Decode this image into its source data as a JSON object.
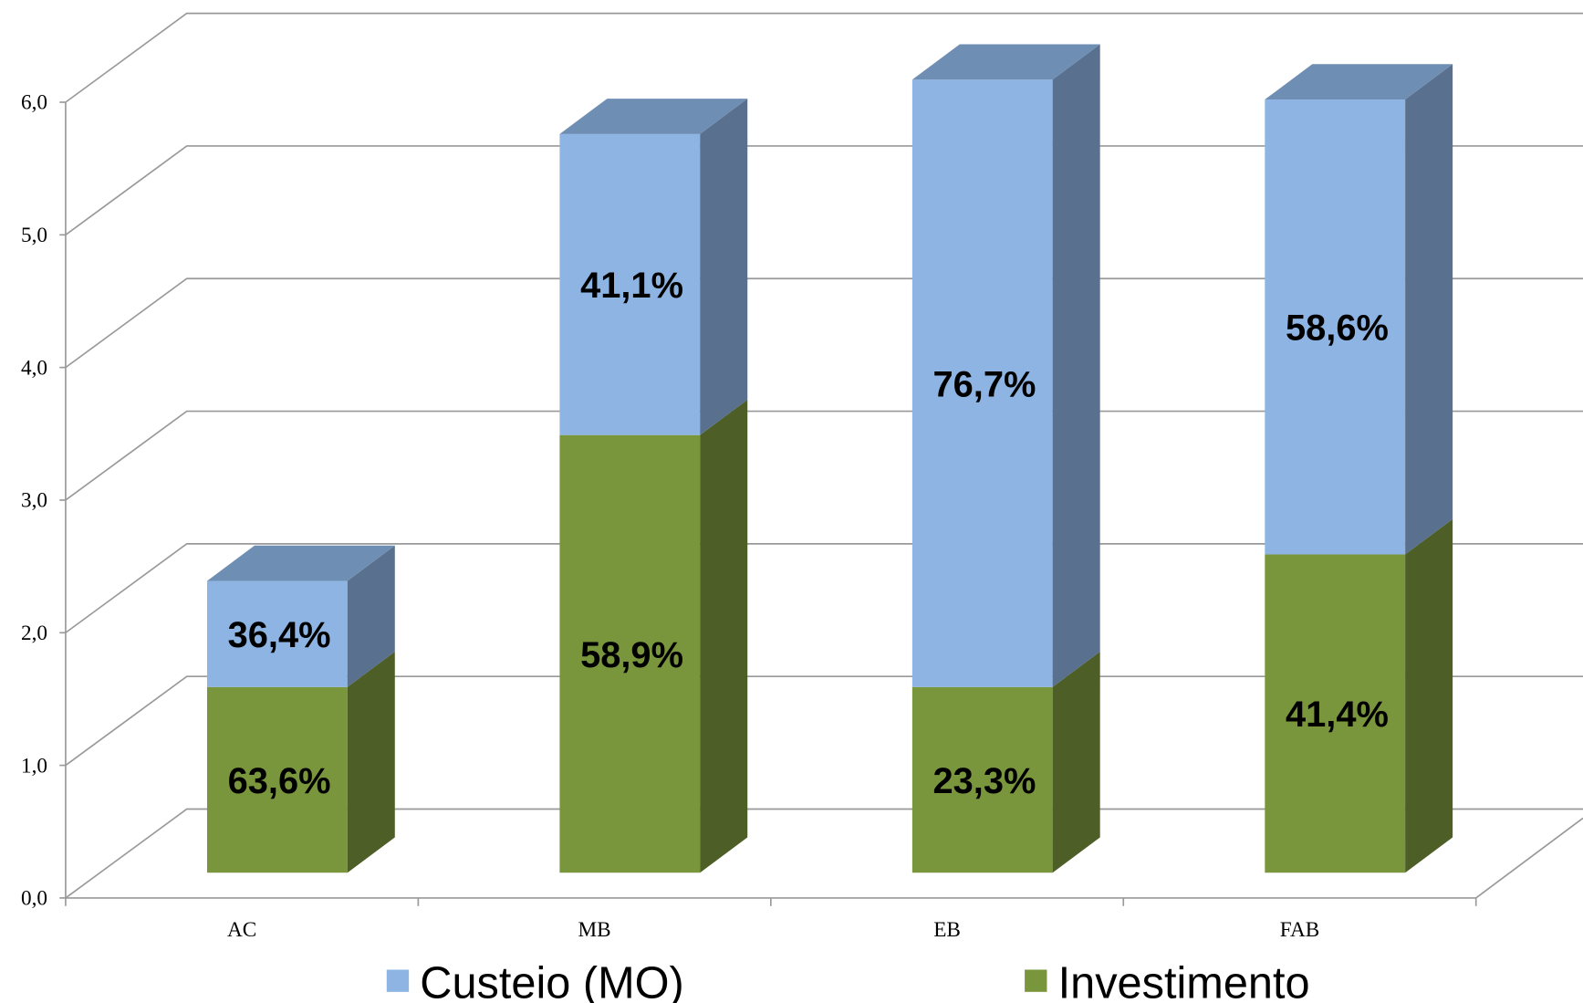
{
  "chart_data": {
    "type": "bar3d_stacked",
    "categories": [
      "AC",
      "MB",
      "EB",
      "FAB"
    ],
    "series": [
      {
        "name": "Custeio (MO)",
        "color": "#8db4e2",
        "values": [
          0.8,
          2.27,
          4.58,
          3.43
        ],
        "labels": [
          "36,4%",
          "41,1%",
          "76,7%",
          "58,6%"
        ]
      },
      {
        "name": "Investimento",
        "color": "#7a963c",
        "values": [
          1.4,
          3.3,
          1.4,
          2.4
        ],
        "labels": [
          "63,6%",
          "58,9%",
          "23,3%",
          "41,4%"
        ]
      }
    ],
    "ylim": [
      0,
      6
    ],
    "yticks": [
      {
        "value": 0,
        "label": "0,0"
      },
      {
        "value": 1,
        "label": "1,0"
      },
      {
        "value": 2,
        "label": "2,0"
      },
      {
        "value": 3,
        "label": "3,0"
      },
      {
        "value": 4,
        "label": "4,0"
      },
      {
        "value": 5,
        "label": "5,0"
      },
      {
        "value": 6,
        "label": "6,0"
      }
    ],
    "grid": true
  }
}
